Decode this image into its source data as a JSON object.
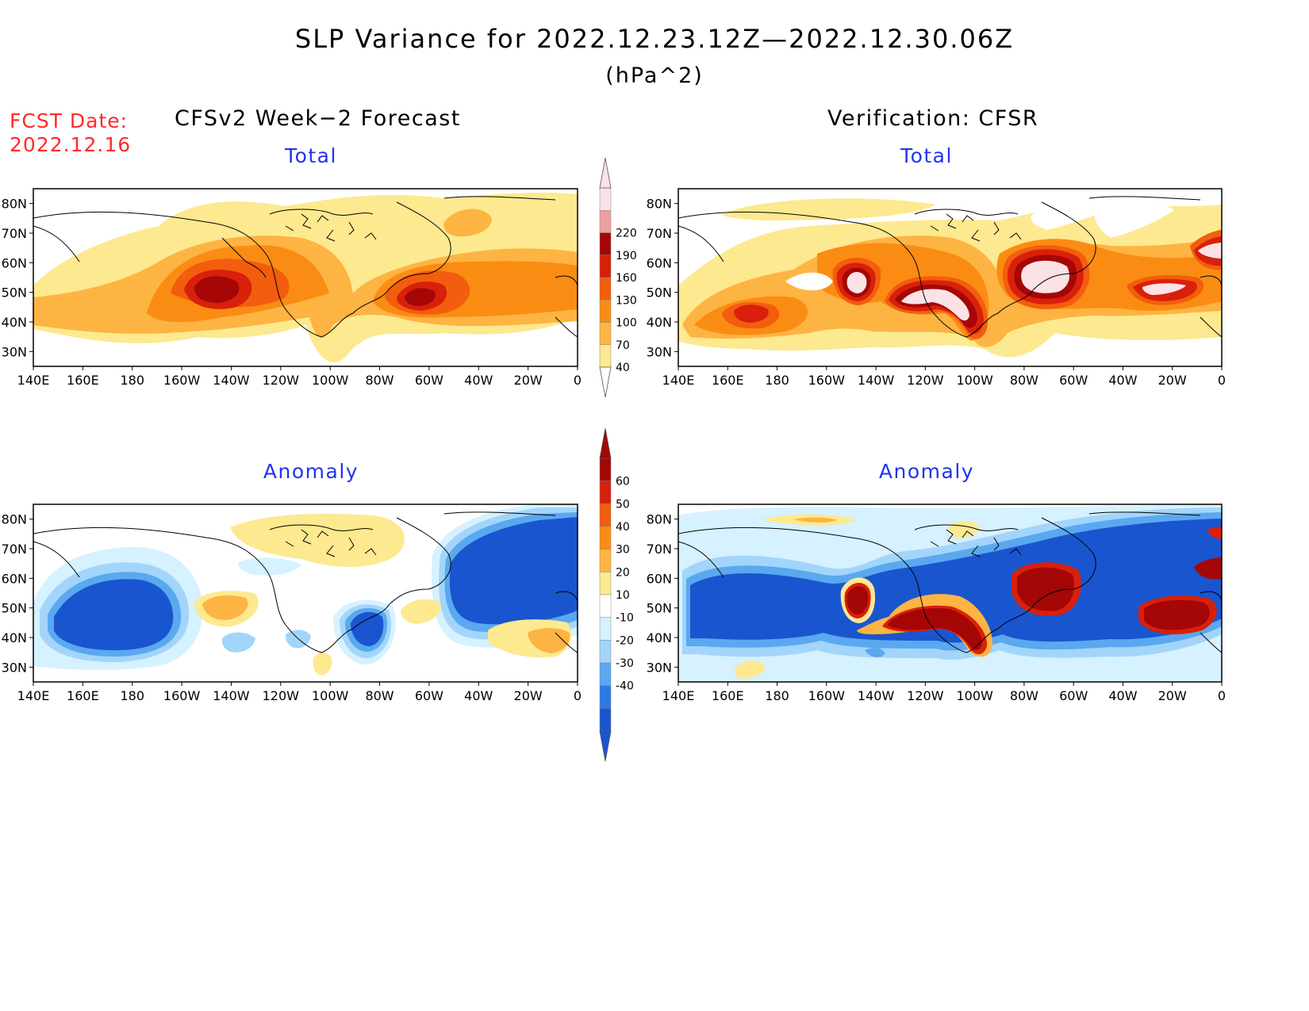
{
  "header": {
    "title": "SLP Variance for 2022.12.23.12Z—2022.12.30.06Z",
    "units": "(hPa^2)",
    "fcst_label": "FCST Date:",
    "fcst_date": "2022.12.16"
  },
  "columns": {
    "left": "CFSv2 Week−2 Forecast",
    "right": "Verification: CFSR"
  },
  "panels": {
    "top_left": "Total",
    "top_right": "Total",
    "bottom_left": "Anomaly",
    "bottom_right": "Anomaly"
  },
  "axes": {
    "lat_labels": [
      "80N",
      "70N",
      "60N",
      "50N",
      "40N",
      "30N"
    ],
    "lon_labels": [
      "140E",
      "160E",
      "180",
      "160W",
      "140W",
      "120W",
      "100W",
      "80W",
      "60W",
      "40W",
      "20W",
      "0"
    ]
  },
  "colorbars": {
    "total": {
      "labels": [
        "40",
        "70",
        "100",
        "130",
        "160",
        "190",
        "220"
      ],
      "colors": [
        "#fde98f",
        "#fdb443",
        "#fb8c13",
        "#f35d0e",
        "#d8200b",
        "#a50606",
        "#eaa0a0",
        "#fbe2e6"
      ]
    },
    "anomaly": {
      "labels": [
        "60",
        "50",
        "40",
        "30",
        "20",
        "10",
        "-10",
        "-20",
        "-30",
        "-40"
      ],
      "colors": [
        "#a50606",
        "#d8200b",
        "#f35d0e",
        "#fb8c13",
        "#fdb443",
        "#fde98f",
        "#ffffff",
        "#d6f1ff",
        "#a3d5fb",
        "#5aa8ef",
        "#2a7ae6",
        "#1a55d0"
      ]
    }
  }
}
